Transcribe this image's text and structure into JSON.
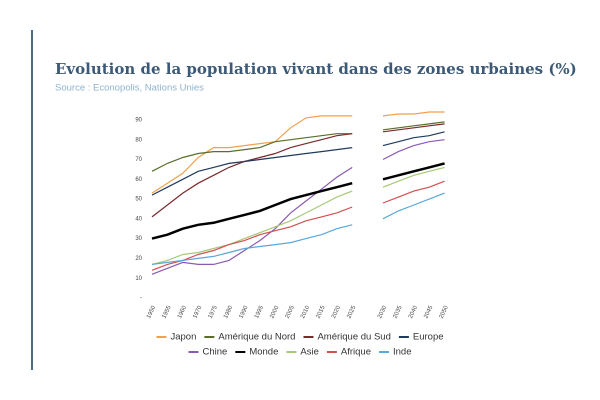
{
  "chart_data": {
    "type": "line",
    "title": "Evolution de la population vivant dans des zones urbaines (%)",
    "subtitle": "Source : Econopolis, Nations Unies",
    "categories": [
      "1950",
      "1955",
      "1960",
      "1970",
      "1975",
      "1980",
      "1990",
      "1995",
      "2000",
      "2005",
      "2010",
      "2015",
      "2020",
      "2025",
      null,
      "2030",
      "2035",
      "2040",
      "2045",
      "2050"
    ],
    "ylim": [
      0,
      95
    ],
    "yticks": [
      {
        "value": 0,
        "label": "-"
      },
      10,
      20,
      30,
      40,
      50,
      60,
      70,
      80,
      90
    ],
    "grid": false,
    "legend": "bottom",
    "series": [
      {
        "name": "Japon",
        "color": "#f0a050",
        "values": [
          53,
          58,
          63,
          71,
          76,
          76,
          77,
          78,
          79,
          86,
          91,
          92,
          92,
          92,
          null,
          92,
          93,
          93,
          94,
          94
        ]
      },
      {
        "name": "Amérique du Nord",
        "color": "#5a6e2a",
        "values": [
          64,
          68,
          71,
          73,
          74,
          74,
          75,
          76,
          79,
          80,
          81,
          82,
          83,
          83,
          null,
          85,
          86,
          87,
          88,
          89
        ]
      },
      {
        "name": "Amérique du Sud",
        "color": "#7a2a2a",
        "values": [
          41,
          47,
          53,
          58,
          62,
          66,
          69,
          71,
          73,
          76,
          78,
          80,
          82,
          83,
          null,
          84,
          85,
          86,
          87,
          88
        ]
      },
      {
        "name": "Europe",
        "color": "#1f3a5c",
        "values": [
          52,
          56,
          60,
          64,
          66,
          68,
          69,
          70,
          71,
          72,
          73,
          74,
          75,
          76,
          null,
          77,
          79,
          81,
          82,
          84
        ]
      },
      {
        "name": "Chine",
        "color": "#8a5ab0",
        "values": [
          12,
          15,
          18,
          17,
          17,
          19,
          24,
          29,
          35,
          43,
          49,
          55,
          61,
          66,
          null,
          70,
          74,
          77,
          79,
          80
        ]
      },
      {
        "name": "Monde",
        "color": "#000000",
        "linewidth": 2.5,
        "values": [
          30,
          32,
          35,
          37,
          38,
          40,
          42,
          44,
          47,
          50,
          52,
          54,
          56,
          58,
          null,
          60,
          62,
          64,
          66,
          68
        ]
      },
      {
        "name": "Asie",
        "color": "#a8c878",
        "values": [
          17,
          19,
          22,
          23,
          25,
          27,
          30,
          33,
          36,
          39,
          43,
          47,
          51,
          54,
          null,
          56,
          59,
          62,
          64,
          66
        ]
      },
      {
        "name": "Afrique",
        "color": "#d05050",
        "values": [
          14,
          17,
          19,
          22,
          24,
          27,
          29,
          32,
          34,
          36,
          39,
          41,
          43,
          46,
          null,
          48,
          51,
          54,
          56,
          59
        ]
      },
      {
        "name": "Inde",
        "color": "#5aa8d8",
        "values": [
          17,
          18,
          19,
          20,
          21,
          23,
          25,
          26,
          27,
          28,
          30,
          32,
          35,
          37,
          null,
          40,
          44,
          47,
          50,
          53
        ]
      }
    ]
  }
}
